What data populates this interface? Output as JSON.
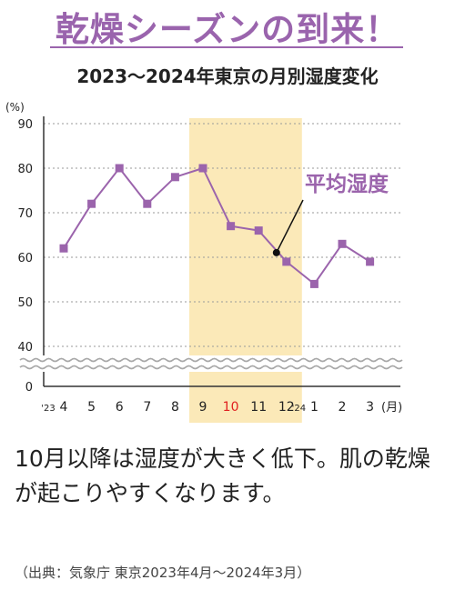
{
  "headline": "乾燥シーズンの到来！",
  "chart_title": "2023～2024年東京の月別湿度変化",
  "chart_data": {
    "type": "line",
    "ylabel": "(%)",
    "xlabel": "(月)",
    "yticks": [
      0,
      40,
      50,
      60,
      70,
      80,
      90
    ],
    "ylim": [
      40,
      90
    ],
    "axis_break": "between 0 and 40",
    "grid": true,
    "categories": [
      "4",
      "5",
      "6",
      "7",
      "8",
      "9",
      "10",
      "11",
      "12",
      "1",
      "2",
      "3"
    ],
    "year_labels": [
      {
        "index": 0,
        "label": "'23"
      },
      {
        "index": 9,
        "label": "'24"
      }
    ],
    "highlight_range": [
      "9",
      "12"
    ],
    "highlight_tick": "10",
    "series": [
      {
        "name": "平均湿度",
        "values": [
          62,
          72,
          80,
          72,
          78,
          80,
          67,
          66,
          59,
          54,
          63,
          59
        ]
      }
    ],
    "annotation_point_index": 8
  },
  "colors": {
    "series": "#9b64ac",
    "highlight": "#fbe9b8",
    "highlight_tick": "#e02020",
    "grid": "#9a9a9a",
    "headline": "#9a64ad"
  },
  "body_text": "10月以降は湿度が大きく低下。肌の乾燥が起こりやすくなります。",
  "source": "（出典：気象庁 東京2023年4月～2024年3月）"
}
